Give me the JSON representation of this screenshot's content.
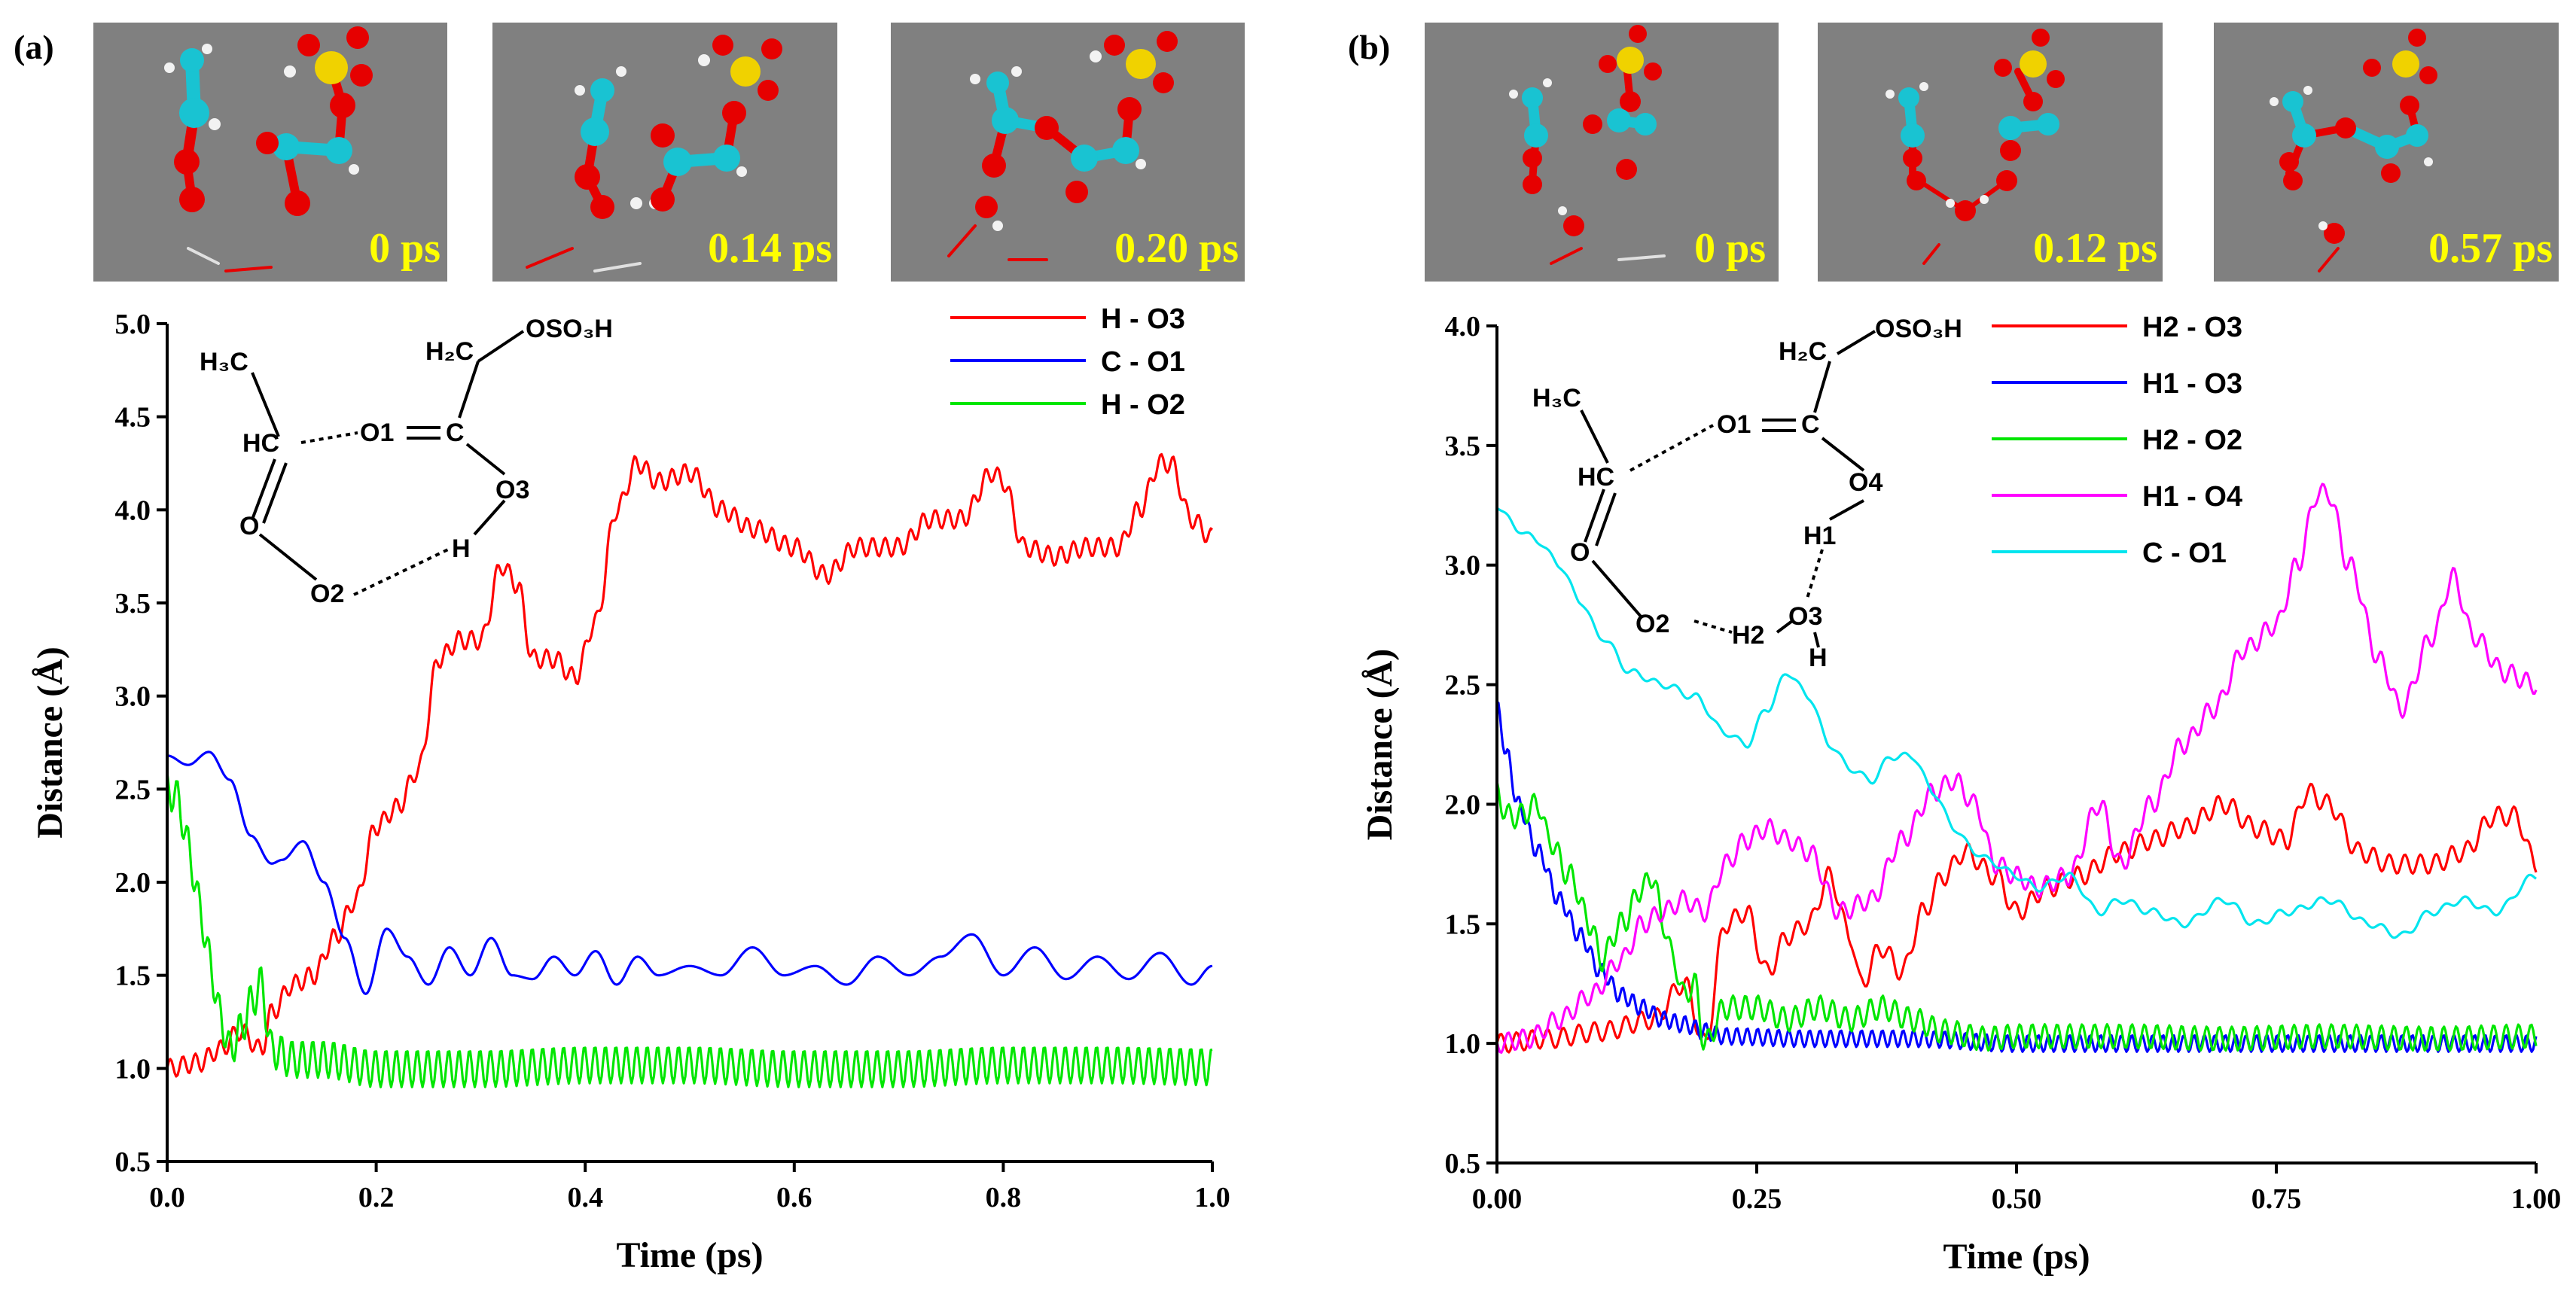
{
  "colors": {
    "red": "#ff0000",
    "blue": "#0000ff",
    "green": "#00e600",
    "magenta": "#ff00ff",
    "cyan": "#00e5ee",
    "snapshot_bg": "#808080",
    "snapshot_label": "#ffff00",
    "carbon": "#19c3d2",
    "oxygen": "#e60000",
    "sulfur": "#f0d200",
    "hydrogen": "#f2f2f2"
  },
  "panels": [
    {
      "label": "(a)",
      "snapshots": [
        "0 ps",
        "0.14 ps",
        "0.20 ps"
      ],
      "scheme": {
        "ch3": "H₃C",
        "hc": "HC",
        "o": "O",
        "o1": "O1",
        "c": "C",
        "ch2": "H₂C",
        "oso3h": "OSO₃H",
        "o3": "O3",
        "h": "H",
        "o2": "O2"
      },
      "chart_data": {
        "type": "line",
        "xlabel": "Time (ps)",
        "ylabel": "Distance (Å)",
        "xlim": [
          0,
          1.0
        ],
        "ylim": [
          0.5,
          5.0
        ],
        "xticks": [
          0.0,
          0.2,
          0.4,
          0.6,
          0.8,
          1.0
        ],
        "xticklabels": [
          "0.0",
          "0.2",
          "0.4",
          "0.6",
          "0.8",
          "1.0"
        ],
        "yticks": [
          0.5,
          1.0,
          1.5,
          2.0,
          2.5,
          3.0,
          3.5,
          4.0,
          4.5,
          5.0
        ],
        "yticklabels": [
          "0.5",
          "1.0",
          "1.5",
          "2.0",
          "2.5",
          "3.0",
          "3.5",
          "4.0",
          "4.5",
          "5.0"
        ],
        "legend_position": "top-right",
        "series": [
          {
            "name": "H - O3",
            "color": "#ff0000",
            "osc_amp": 0.05,
            "osc_period": 0.012,
            "x": [
              0,
              0.03,
              0.05,
              0.07,
              0.09,
              0.1,
              0.12,
              0.14,
              0.16,
              0.18,
              0.2,
              0.22,
              0.24,
              0.26,
              0.28,
              0.3,
              0.32,
              0.335,
              0.35,
              0.37,
              0.39,
              0.41,
              0.43,
              0.45,
              0.47,
              0.5,
              0.53,
              0.56,
              0.6,
              0.63,
              0.66,
              0.7,
              0.73,
              0.76,
              0.79,
              0.8,
              0.82,
              0.85,
              0.88,
              0.91,
              0.93,
              0.95,
              0.96,
              0.98,
              1.0
            ],
            "y": [
              1.0,
              1.03,
              1.1,
              1.2,
              1.1,
              1.3,
              1.45,
              1.5,
              1.7,
              1.9,
              2.3,
              2.4,
              2.6,
              3.2,
              3.3,
              3.3,
              3.7,
              3.6,
              3.2,
              3.2,
              3.1,
              3.4,
              4.0,
              4.25,
              4.15,
              4.2,
              4.0,
              3.9,
              3.8,
              3.65,
              3.8,
              3.8,
              3.95,
              3.95,
              4.2,
              4.15,
              3.8,
              3.75,
              3.8,
              3.8,
              4.0,
              4.25,
              4.25,
              3.95,
              3.85
            ]
          },
          {
            "name": "C - O1",
            "color": "#0000ff",
            "osc_amp": 0.0,
            "osc_period": 0.05,
            "x": [
              0,
              0.02,
              0.04,
              0.06,
              0.08,
              0.1,
              0.11,
              0.13,
              0.15,
              0.17,
              0.19,
              0.21,
              0.23,
              0.25,
              0.27,
              0.29,
              0.31,
              0.33,
              0.35,
              0.37,
              0.39,
              0.41,
              0.43,
              0.45,
              0.47,
              0.5,
              0.53,
              0.56,
              0.59,
              0.62,
              0.65,
              0.68,
              0.71,
              0.74,
              0.77,
              0.8,
              0.83,
              0.86,
              0.89,
              0.92,
              0.95,
              0.98,
              1.0
            ],
            "y": [
              2.68,
              2.63,
              2.7,
              2.55,
              2.25,
              2.1,
              2.12,
              2.22,
              2.0,
              1.7,
              1.4,
              1.75,
              1.6,
              1.45,
              1.65,
              1.5,
              1.7,
              1.5,
              1.48,
              1.6,
              1.5,
              1.63,
              1.45,
              1.6,
              1.5,
              1.55,
              1.5,
              1.65,
              1.5,
              1.55,
              1.45,
              1.6,
              1.5,
              1.6,
              1.72,
              1.5,
              1.65,
              1.48,
              1.6,
              1.48,
              1.62,
              1.45,
              1.55
            ]
          },
          {
            "name": "H - O2",
            "color": "#00e600",
            "osc_amp": 0.1,
            "osc_period": 0.01,
            "x": [
              0,
              0.01,
              0.02,
              0.03,
              0.04,
              0.05,
              0.06,
              0.07,
              0.08,
              0.09,
              0.1,
              0.12,
              0.15,
              0.2,
              0.3,
              0.4,
              0.5,
              0.6,
              0.7,
              0.8,
              0.9,
              1.0
            ],
            "y": [
              2.5,
              2.45,
              2.2,
              1.9,
              1.6,
              1.3,
              1.1,
              1.2,
              1.35,
              1.45,
              1.1,
              1.05,
              1.05,
              1.0,
              1.0,
              1.02,
              1.02,
              1.0,
              1.0,
              1.02,
              1.02,
              1.01
            ]
          }
        ]
      }
    },
    {
      "label": "(b)",
      "snapshots": [
        "0 ps",
        "0.12 ps",
        "0.57 ps"
      ],
      "scheme": {
        "ch3": "H₃C",
        "hc": "HC",
        "o": "O",
        "o1": "O1",
        "c": "C",
        "ch2": "H₂C",
        "oso3h": "OSO₃H",
        "o4": "O4",
        "h1": "H1",
        "o3": "O3",
        "h2": "H2",
        "h": "H",
        "o2": "O2"
      },
      "chart_data": {
        "type": "line",
        "xlabel": "Time (ps)",
        "ylabel": "Distance (Å)",
        "xlim": [
          0,
          1.0
        ],
        "ylim": [
          0.5,
          4.0
        ],
        "xticks": [
          0.0,
          0.25,
          0.5,
          0.75,
          1.0
        ],
        "xticklabels": [
          "0.00",
          "0.25",
          "0.50",
          "0.75",
          "1.00"
        ],
        "yticks": [
          0.5,
          1.0,
          1.5,
          2.0,
          2.5,
          3.0,
          3.5,
          4.0
        ],
        "yticklabels": [
          "0.5",
          "1.0",
          "1.5",
          "2.0",
          "2.5",
          "3.0",
          "3.5",
          "4.0"
        ],
        "legend_position": "top-right",
        "series": [
          {
            "name": "H2 - O3",
            "color": "#ff0000",
            "osc_amp": 0.04,
            "osc_period": 0.015,
            "x": [
              0,
              0.05,
              0.1,
              0.15,
              0.18,
              0.2,
              0.22,
              0.24,
              0.26,
              0.28,
              0.3,
              0.32,
              0.34,
              0.35,
              0.37,
              0.39,
              0.41,
              0.43,
              0.45,
              0.48,
              0.5,
              0.53,
              0.56,
              0.6,
              0.63,
              0.66,
              0.7,
              0.73,
              0.76,
              0.78,
              0.8,
              0.83,
              0.86,
              0.9,
              0.93,
              0.96,
              0.98,
              1.0
            ],
            "y": [
              1.0,
              1.02,
              1.05,
              1.1,
              1.25,
              1.0,
              1.5,
              1.55,
              1.3,
              1.45,
              1.5,
              1.7,
              1.45,
              1.25,
              1.4,
              1.3,
              1.55,
              1.7,
              1.8,
              1.7,
              1.55,
              1.65,
              1.7,
              1.8,
              1.85,
              1.9,
              2.0,
              1.9,
              1.85,
              2.05,
              2.0,
              1.8,
              1.75,
              1.75,
              1.8,
              1.95,
              1.95,
              1.75
            ]
          },
          {
            "name": "H1 - O3",
            "color": "#0000ff",
            "osc_amp": 0.035,
            "osc_period": 0.01,
            "x": [
              0,
              0.01,
              0.02,
              0.04,
              0.06,
              0.08,
              0.1,
              0.12,
              0.14,
              0.16,
              0.18,
              0.2,
              0.22,
              0.3,
              0.4,
              0.5,
              0.6,
              0.7,
              0.8,
              0.9,
              1.0
            ],
            "y": [
              2.4,
              2.2,
              2.0,
              1.8,
              1.6,
              1.45,
              1.3,
              1.2,
              1.15,
              1.1,
              1.08,
              1.05,
              1.03,
              1.02,
              1.02,
              1.0,
              1.0,
              1.0,
              1.0,
              1.0,
              1.0
            ]
          },
          {
            "name": "H2 - O2",
            "color": "#00e600",
            "osc_amp": 0.05,
            "osc_period": 0.012,
            "x": [
              0,
              0.01,
              0.02,
              0.04,
              0.05,
              0.07,
              0.09,
              0.1,
              0.12,
              0.14,
              0.15,
              0.16,
              0.17,
              0.18,
              0.19,
              0.2,
              0.22,
              0.25,
              0.28,
              0.31,
              0.34,
              0.37,
              0.4,
              0.43,
              0.47,
              0.5,
              0.6,
              0.7,
              0.8,
              0.9,
              1.0
            ],
            "y": [
              2.05,
              1.95,
              1.95,
              2.0,
              1.85,
              1.7,
              1.5,
              1.35,
              1.5,
              1.65,
              1.7,
              1.5,
              1.35,
              1.2,
              1.25,
              1.0,
              1.15,
              1.15,
              1.1,
              1.15,
              1.1,
              1.15,
              1.1,
              1.05,
              1.02,
              1.03,
              1.03,
              1.02,
              1.03,
              1.02,
              1.03
            ]
          },
          {
            "name": "H1 - O4",
            "color": "#ff00ff",
            "osc_amp": 0.04,
            "osc_period": 0.014,
            "x": [
              0,
              0.03,
              0.06,
              0.09,
              0.12,
              0.14,
              0.16,
              0.18,
              0.2,
              0.22,
              0.24,
              0.26,
              0.28,
              0.3,
              0.33,
              0.36,
              0.39,
              0.42,
              0.44,
              0.46,
              0.48,
              0.5,
              0.52,
              0.55,
              0.58,
              0.6,
              0.63,
              0.66,
              0.69,
              0.72,
              0.75,
              0.77,
              0.79,
              0.8,
              0.82,
              0.85,
              0.87,
              0.9,
              0.92,
              0.94,
              0.97,
              1.0
            ],
            "y": [
              1.0,
              1.02,
              1.1,
              1.2,
              1.35,
              1.5,
              1.55,
              1.6,
              1.55,
              1.75,
              1.85,
              1.9,
              1.85,
              1.8,
              1.55,
              1.6,
              1.85,
              2.05,
              2.1,
              2.0,
              1.75,
              1.7,
              1.65,
              1.7,
              2.0,
              1.75,
              2.0,
              2.25,
              2.4,
              2.65,
              2.75,
              3.0,
              3.3,
              3.3,
              3.0,
              2.6,
              2.4,
              2.7,
              2.95,
              2.7,
              2.55,
              2.5
            ]
          },
          {
            "name": "C - O1",
            "color": "#00e5ee",
            "osc_amp": 0.015,
            "osc_period": 0.02,
            "x": [
              0,
              0.02,
              0.04,
              0.06,
              0.08,
              0.1,
              0.13,
              0.16,
              0.19,
              0.22,
              0.24,
              0.26,
              0.28,
              0.3,
              0.32,
              0.34,
              0.36,
              0.38,
              0.4,
              0.42,
              0.44,
              0.46,
              0.48,
              0.5,
              0.52,
              0.55,
              0.58,
              0.6,
              0.63,
              0.66,
              0.7,
              0.73,
              0.76,
              0.8,
              0.84,
              0.87,
              0.9,
              0.93,
              0.96,
              1.0
            ],
            "y": [
              3.25,
              3.15,
              3.1,
              3.0,
              2.85,
              2.7,
              2.55,
              2.5,
              2.45,
              2.3,
              2.25,
              2.4,
              2.55,
              2.45,
              2.25,
              2.15,
              2.1,
              2.2,
              2.2,
              2.05,
              1.9,
              1.8,
              1.75,
              1.7,
              1.65,
              1.7,
              1.55,
              1.6,
              1.55,
              1.5,
              1.6,
              1.5,
              1.55,
              1.6,
              1.5,
              1.45,
              1.55,
              1.6,
              1.55,
              1.7
            ]
          }
        ]
      }
    }
  ]
}
